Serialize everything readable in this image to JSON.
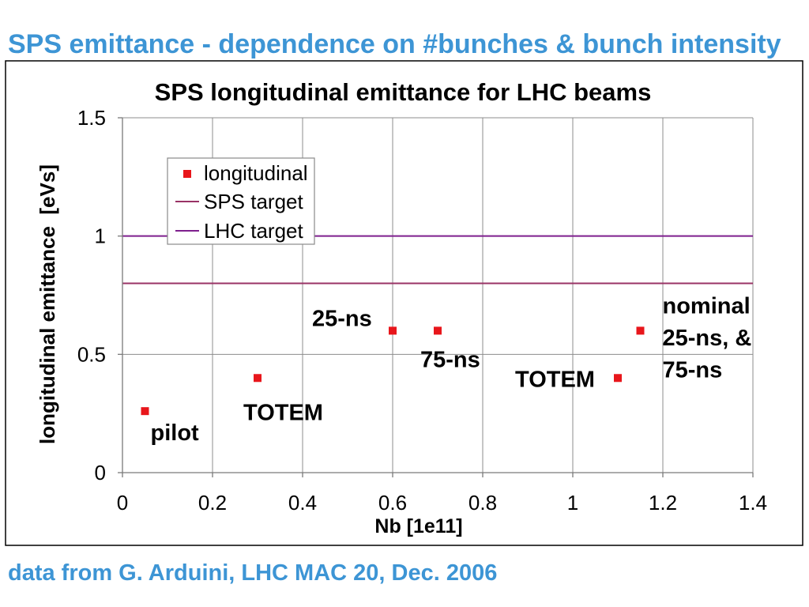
{
  "slide": {
    "title": "SPS emittance - dependence on #bunches & bunch intensity",
    "footer": "data from G. Arduini, LHC MAC 20, Dec. 2006",
    "text_color": "#3d95d5"
  },
  "chart_data": {
    "type": "scatter",
    "title": "SPS longitudinal emittance for LHC beams",
    "xlabel": "Nb [1e11]",
    "ylabel": "longitudinal emittance  [eVs]",
    "xlim": [
      0,
      1.4
    ],
    "ylim": [
      0,
      1.5
    ],
    "xtick_labels": [
      "0",
      "0.2",
      "0.4",
      "0.6",
      "0.8",
      "1",
      "1.2",
      "1.4"
    ],
    "ytick_labels": [
      "0",
      "0.5",
      "1",
      "1.5"
    ],
    "grid": true,
    "legend_position": "top-left",
    "series": [
      {
        "name": "longitudinal",
        "kind": "scatter",
        "marker": "square",
        "color": "#e8161b",
        "points": [
          {
            "x": 0.05,
            "y": 0.26,
            "label": [
              "pilot"
            ]
          },
          {
            "x": 0.3,
            "y": 0.4,
            "label": [
              "TOTEM"
            ]
          },
          {
            "x": 0.6,
            "y": 0.6,
            "label": [
              "25-ns"
            ]
          },
          {
            "x": 0.7,
            "y": 0.6,
            "label": [
              "75-ns"
            ]
          },
          {
            "x": 1.1,
            "y": 0.4,
            "label": [
              "TOTEM"
            ]
          },
          {
            "x": 1.15,
            "y": 0.6,
            "label": [
              "nominal",
              "25-ns, &",
              "75-ns"
            ]
          }
        ]
      },
      {
        "name": "SPS target",
        "kind": "hline",
        "color": "#993366",
        "y": 0.8
      },
      {
        "name": "LHC target",
        "kind": "hline",
        "color": "#7e1f8e",
        "y": 1
      }
    ]
  }
}
